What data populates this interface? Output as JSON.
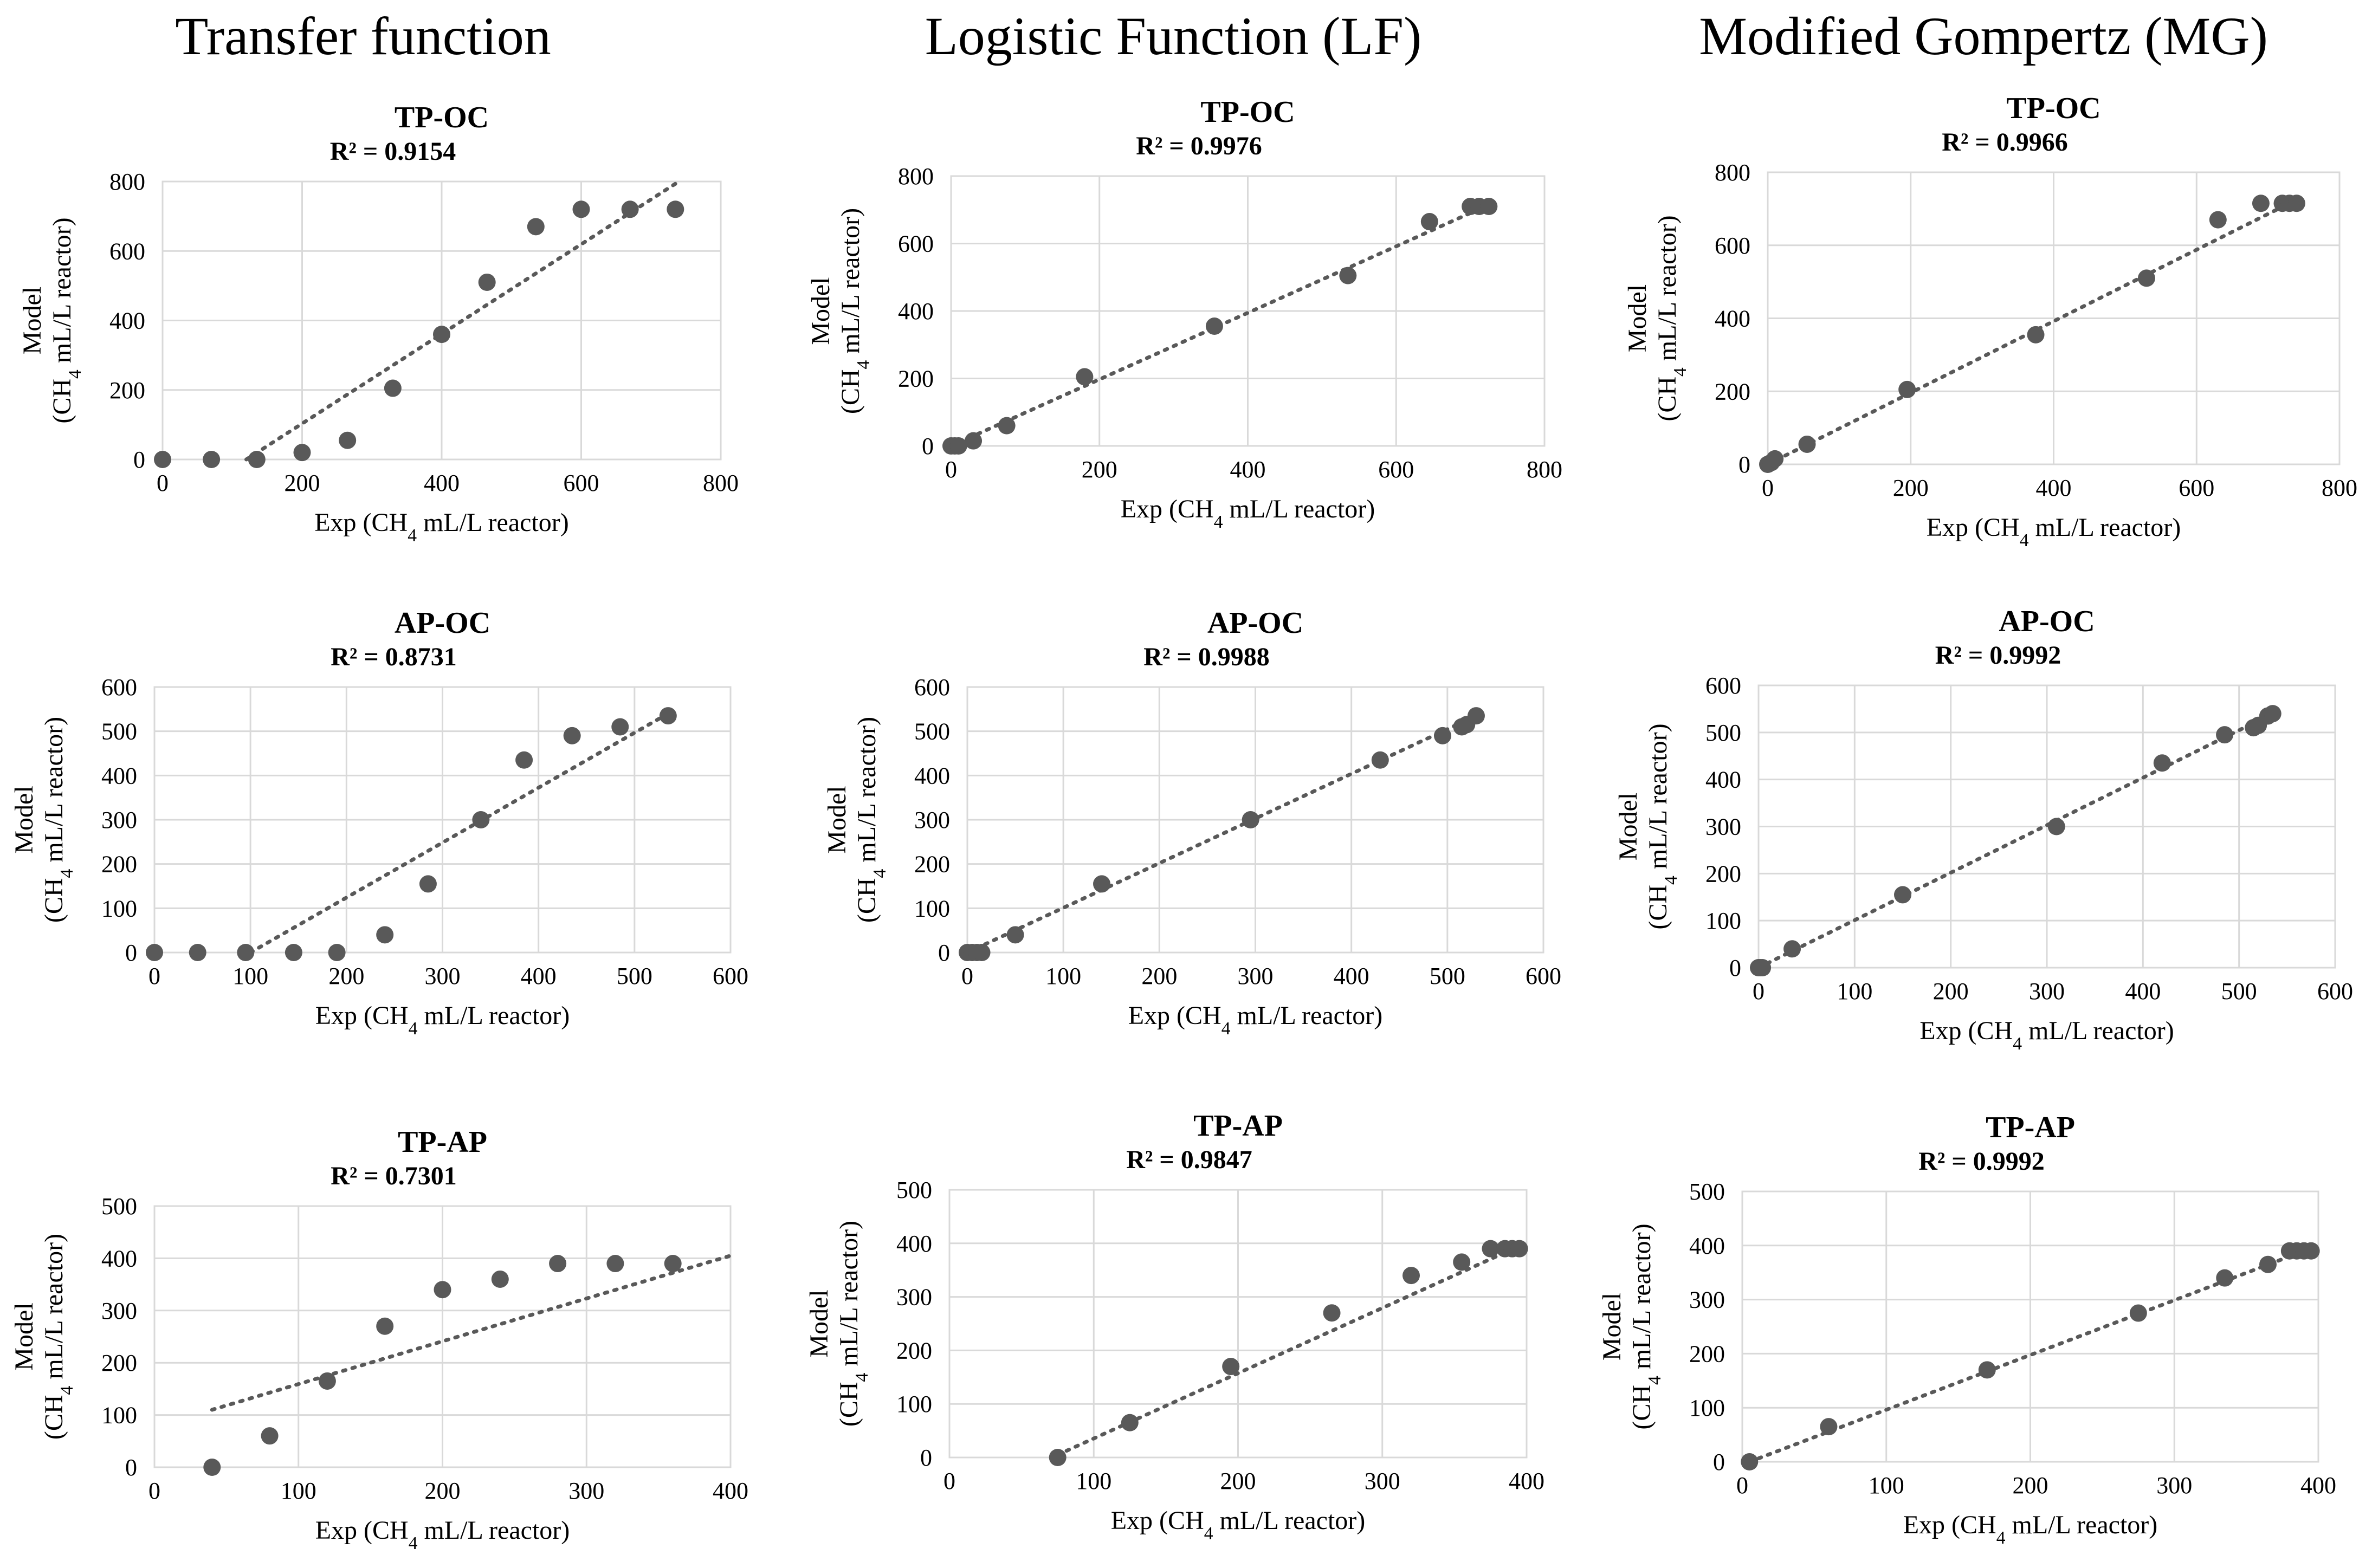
{
  "column_headers": [
    "Transfer function",
    "Logistic Function (LF)",
    "Modified Gompertz (MG)"
  ],
  "chart_data": [
    {
      "type": "scatter",
      "column": "Transfer function",
      "title": "TP-OC",
      "r2": "R² = 0.9154",
      "xlabel": "Exp (CH₄ mL/L reactor)",
      "ylabel_line1": "Model",
      "ylabel_line2": "(CH₄ mL/L reactor)",
      "xlim": [
        0,
        800
      ],
      "ylim": [
        0,
        800
      ],
      "xticks": [
        0,
        200,
        400,
        600,
        800
      ],
      "yticks": [
        0,
        200,
        400,
        600,
        800
      ],
      "points": [
        [
          0,
          0
        ],
        [
          70,
          0
        ],
        [
          135,
          0
        ],
        [
          200,
          20
        ],
        [
          265,
          55
        ],
        [
          330,
          205
        ],
        [
          400,
          360
        ],
        [
          465,
          510
        ],
        [
          535,
          670
        ],
        [
          600,
          720
        ],
        [
          670,
          720
        ],
        [
          735,
          720
        ]
      ],
      "trendline": [
        [
          120,
          0
        ],
        [
          740,
          800
        ]
      ]
    },
    {
      "type": "scatter",
      "column": "Logistic Function (LF)",
      "title": "TP-OC",
      "r2": "R² = 0.9976",
      "xlabel": "Exp (CH₄ mL/L reactor)",
      "ylabel_line1": "Model",
      "ylabel_line2": "(CH₄ mL/L reactor)",
      "xlim": [
        0,
        800
      ],
      "ylim": [
        0,
        800
      ],
      "xticks": [
        0,
        200,
        400,
        600,
        800
      ],
      "yticks": [
        0,
        200,
        400,
        600,
        800
      ],
      "points": [
        [
          0,
          0
        ],
        [
          5,
          0
        ],
        [
          10,
          0
        ],
        [
          30,
          15
        ],
        [
          75,
          60
        ],
        [
          180,
          205
        ],
        [
          355,
          355
        ],
        [
          535,
          505
        ],
        [
          645,
          665
        ],
        [
          700,
          710
        ],
        [
          712,
          710
        ],
        [
          725,
          710
        ]
      ],
      "trendline": [
        [
          0,
          0
        ],
        [
          725,
          715
        ]
      ]
    },
    {
      "type": "scatter",
      "column": "Modified Gompertz (MG)",
      "title": "TP-OC",
      "r2": "R² = 0.9966",
      "xlabel": "Exp (CH₄ mL/L reactor)",
      "ylabel_line1": "Model",
      "ylabel_line2": "(CH₄ mL/L reactor)",
      "xlim": [
        0,
        800
      ],
      "ylim": [
        0,
        800
      ],
      "xticks": [
        0,
        200,
        400,
        600,
        800
      ],
      "yticks": [
        0,
        200,
        400,
        600,
        800
      ],
      "points": [
        [
          0,
          0
        ],
        [
          5,
          5
        ],
        [
          10,
          15
        ],
        [
          55,
          55
        ],
        [
          195,
          205
        ],
        [
          375,
          355
        ],
        [
          530,
          510
        ],
        [
          630,
          670
        ],
        [
          690,
          715
        ],
        [
          720,
          715
        ],
        [
          730,
          715
        ],
        [
          740,
          715
        ]
      ],
      "trendline": [
        [
          0,
          0
        ],
        [
          740,
          725
        ]
      ]
    },
    {
      "type": "scatter",
      "column": "Transfer function",
      "title": "AP-OC",
      "r2": "R² = 0.8731",
      "xlabel": "Exp (CH₄ mL/L reactor)",
      "ylabel_line1": "Model",
      "ylabel_line2": "(CH₄ mL/L reactor)",
      "xlim": [
        0,
        600
      ],
      "ylim": [
        0,
        600
      ],
      "xticks": [
        0,
        100,
        200,
        300,
        400,
        500,
        600
      ],
      "yticks": [
        0,
        100,
        200,
        300,
        400,
        500,
        600
      ],
      "points": [
        [
          0,
          0
        ],
        [
          45,
          0
        ],
        [
          95,
          0
        ],
        [
          145,
          0
        ],
        [
          190,
          0
        ],
        [
          240,
          40
        ],
        [
          285,
          155
        ],
        [
          340,
          300
        ],
        [
          385,
          435
        ],
        [
          435,
          490
        ],
        [
          485,
          510
        ],
        [
          535,
          535
        ]
      ],
      "trendline": [
        [
          100,
          0
        ],
        [
          535,
          540
        ]
      ]
    },
    {
      "type": "scatter",
      "column": "Logistic Function (LF)",
      "title": "AP-OC",
      "r2": "R² = 0.9988",
      "xlabel": "Exp (CH₄ mL/L reactor)",
      "ylabel_line1": "Model",
      "ylabel_line2": "(CH₄ mL/L reactor)",
      "xlim": [
        0,
        600
      ],
      "ylim": [
        0,
        600
      ],
      "xticks": [
        0,
        100,
        200,
        300,
        400,
        500,
        600
      ],
      "yticks": [
        0,
        100,
        200,
        300,
        400,
        500,
        600
      ],
      "points": [
        [
          0,
          0
        ],
        [
          5,
          0
        ],
        [
          10,
          0
        ],
        [
          15,
          0
        ],
        [
          50,
          40
        ],
        [
          140,
          155
        ],
        [
          295,
          300
        ],
        [
          430,
          435
        ],
        [
          495,
          490
        ],
        [
          515,
          510
        ],
        [
          520,
          515
        ],
        [
          530,
          535
        ]
      ],
      "trendline": [
        [
          0,
          0
        ],
        [
          530,
          535
        ]
      ]
    },
    {
      "type": "scatter",
      "column": "Modified Gompertz (MG)",
      "title": "AP-OC",
      "r2": "R² = 0.9992",
      "xlabel": "Exp (CH₄ mL/L reactor)",
      "ylabel_line1": "Model",
      "ylabel_line2": "(CH₄ mL/L reactor)",
      "xlim": [
        0,
        600
      ],
      "ylim": [
        0,
        600
      ],
      "xticks": [
        0,
        100,
        200,
        300,
        400,
        500,
        600
      ],
      "yticks": [
        0,
        100,
        200,
        300,
        400,
        500,
        600
      ],
      "points": [
        [
          0,
          0
        ],
        [
          2,
          0
        ],
        [
          4,
          0
        ],
        [
          35,
          40
        ],
        [
          150,
          155
        ],
        [
          310,
          300
        ],
        [
          420,
          435
        ],
        [
          485,
          495
        ],
        [
          515,
          510
        ],
        [
          520,
          515
        ],
        [
          530,
          535
        ],
        [
          535,
          540
        ]
      ],
      "trendline": [
        [
          0,
          0
        ],
        [
          535,
          540
        ]
      ]
    },
    {
      "type": "scatter",
      "column": "Transfer function",
      "title": "TP-AP",
      "r2": "R² = 0.7301",
      "xlabel": "Exp (CH₄ mL/L reactor)",
      "ylabel_line1": "Model",
      "ylabel_line2": "(CH₄ mL/L reactor)",
      "xlim": [
        0,
        400
      ],
      "ylim": [
        0,
        500
      ],
      "xticks": [
        0,
        100,
        200,
        300,
        400
      ],
      "yticks": [
        0,
        100,
        200,
        300,
        400,
        500
      ],
      "points": [
        [
          40,
          0
        ],
        [
          80,
          60
        ],
        [
          120,
          165
        ],
        [
          160,
          270
        ],
        [
          200,
          340
        ],
        [
          240,
          360
        ],
        [
          280,
          390
        ],
        [
          320,
          390
        ],
        [
          360,
          390
        ]
      ],
      "trendline": [
        [
          40,
          110
        ],
        [
          400,
          405
        ]
      ]
    },
    {
      "type": "scatter",
      "column": "Logistic Function (LF)",
      "title": "TP-AP",
      "r2": "R² = 0.9847",
      "xlabel": "Exp (CH₄ mL/L reactor)",
      "ylabel_line1": "Model",
      "ylabel_line2": "(CH₄ mL/L reactor)",
      "xlim": [
        0,
        400
      ],
      "ylim": [
        0,
        500
      ],
      "xticks": [
        0,
        100,
        200,
        300,
        400
      ],
      "yticks": [
        0,
        100,
        200,
        300,
        400,
        500
      ],
      "points": [
        [
          75,
          0
        ],
        [
          125,
          65
        ],
        [
          195,
          170
        ],
        [
          265,
          270
        ],
        [
          320,
          340
        ],
        [
          355,
          365
        ],
        [
          375,
          390
        ],
        [
          385,
          390
        ],
        [
          390,
          390
        ],
        [
          395,
          390
        ]
      ],
      "trendline": [
        [
          75,
          5
        ],
        [
          395,
          395
        ]
      ]
    },
    {
      "type": "scatter",
      "column": "Modified Gompertz (MG)",
      "title": "TP-AP",
      "r2": "R² = 0.9992",
      "xlabel": "Exp (CH₄ mL/L reactor)",
      "ylabel_line1": "Model",
      "ylabel_line2": "(CH₄ mL/L reactor)",
      "xlim": [
        0,
        400
      ],
      "ylim": [
        0,
        500
      ],
      "xticks": [
        0,
        100,
        200,
        300,
        400
      ],
      "yticks": [
        0,
        100,
        200,
        300,
        400,
        500
      ],
      "points": [
        [
          5,
          0
        ],
        [
          60,
          65
        ],
        [
          170,
          170
        ],
        [
          275,
          275
        ],
        [
          335,
          340
        ],
        [
          365,
          365
        ],
        [
          380,
          390
        ],
        [
          385,
          390
        ],
        [
          390,
          390
        ],
        [
          395,
          390
        ]
      ],
      "trendline": [
        [
          5,
          0
        ],
        [
          395,
          395
        ]
      ]
    }
  ],
  "colors": {
    "marker": "#595959",
    "trendline": "#595959",
    "gridline": "#d9d9d9"
  }
}
